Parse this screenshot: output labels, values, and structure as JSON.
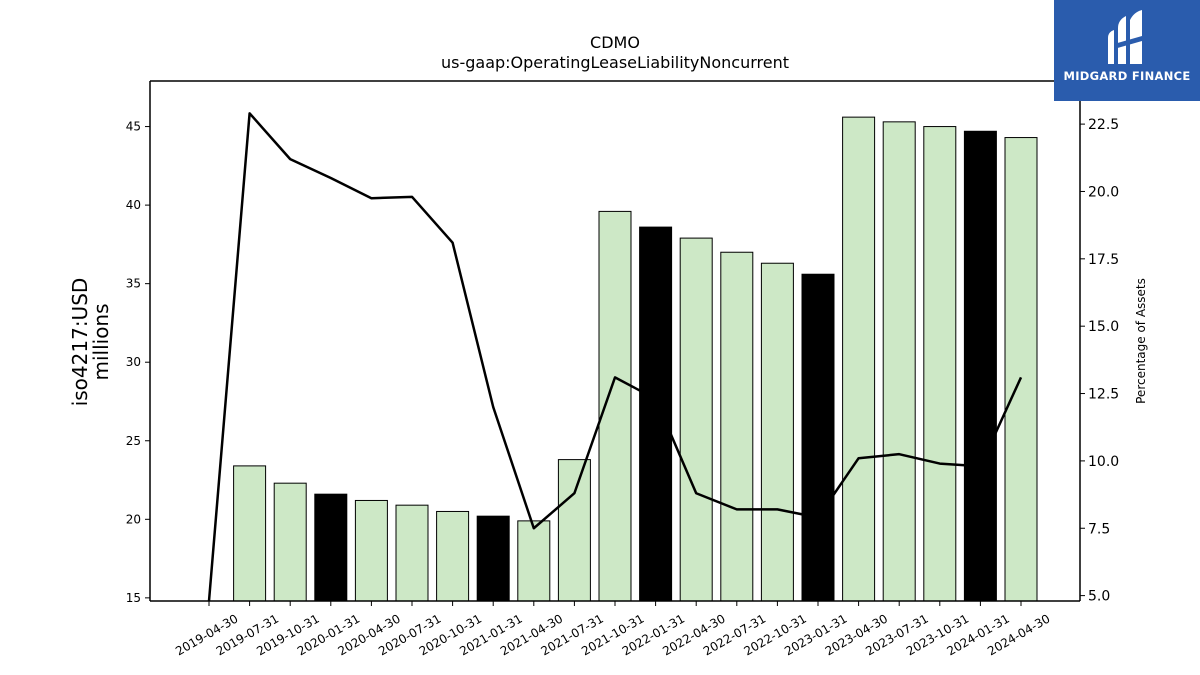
{
  "chart_data": {
    "type": "bar",
    "title": "CDMO",
    "subtitle": "us-gaap:OperatingLeaseLiabilityNoncurrent",
    "ylabel_line1": "iso4217:USD",
    "ylabel_line2": "millions",
    "y2label": "Percentage of Assets",
    "categories": [
      "2019-04-30",
      "2019-07-31",
      "2019-10-31",
      "2020-01-31",
      "2020-04-30",
      "2020-07-31",
      "2020-10-31",
      "2021-01-31",
      "2021-04-30",
      "2021-07-31",
      "2021-10-31",
      "2022-01-31",
      "2022-04-30",
      "2022-07-31",
      "2022-10-31",
      "2023-01-31",
      "2023-04-30",
      "2023-07-31",
      "2023-10-31",
      "2024-01-31",
      "2024-04-30"
    ],
    "series": [
      {
        "values": [
          null,
          23.4,
          22.3,
          21.6,
          21.2,
          20.9,
          20.5,
          20.2,
          19.9,
          23.8,
          39.6,
          38.6,
          37.9,
          37.0,
          36.3,
          35.6,
          45.6,
          45.3,
          45.0,
          44.7,
          44.3
        ],
        "highlight": [
          false,
          false,
          false,
          true,
          false,
          false,
          false,
          true,
          false,
          false,
          false,
          true,
          false,
          false,
          false,
          true,
          false,
          false,
          false,
          true,
          false
        ]
      },
      {
        "axis": "right",
        "type": "line",
        "values": [
          4.5,
          22.9,
          21.2,
          20.5,
          19.75,
          19.8,
          18.1,
          12.0,
          7.5,
          8.8,
          13.1,
          12.3,
          8.8,
          8.2,
          8.2,
          7.9,
          10.1,
          10.25,
          9.9,
          9.8,
          13.1
        ]
      }
    ],
    "ylim": [
      14.8,
      47.9
    ],
    "y2lim": [
      4.8,
      24.1
    ],
    "yticks": [
      15,
      20,
      25,
      30,
      35,
      40,
      45
    ],
    "y2ticks": [
      5.0,
      7.5,
      10.0,
      12.5,
      15.0,
      17.5,
      20.0,
      22.5
    ],
    "colors": {
      "bar_fill": "#cde8c6",
      "bar_highlight": "#000000",
      "bar_edge": "#000000",
      "line": "#000000"
    }
  },
  "logo": {
    "text": "MIDGARD FINANCE"
  }
}
